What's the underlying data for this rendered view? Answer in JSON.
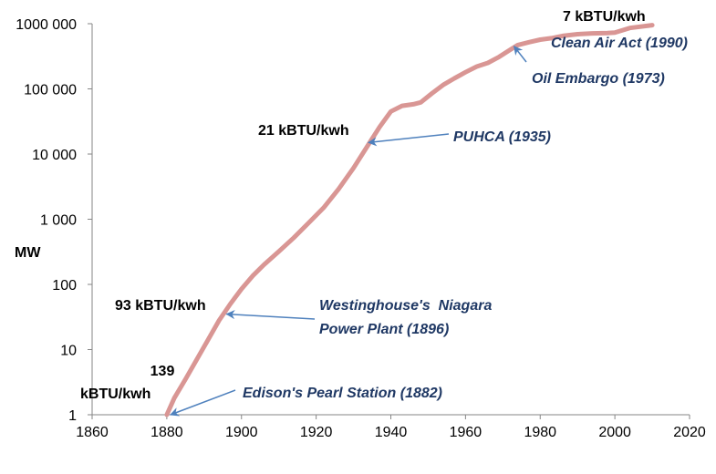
{
  "chart_data": {
    "type": "line",
    "title": "",
    "xlabel": "",
    "ylabel": "MW",
    "xlim": [
      1860,
      2020
    ],
    "ylim": [
      1,
      1000000
    ],
    "y_scale": "log",
    "grid": false,
    "legend": "none",
    "x_ticks": [
      "1860",
      "1880",
      "1900",
      "1920",
      "1940",
      "1960",
      "1980",
      "2000",
      "2020"
    ],
    "y_ticks": [
      "1",
      "10",
      "100",
      "1 000",
      "10 000",
      "100 000",
      "1000 000"
    ],
    "series": [
      {
        "color": "#d99694",
        "x": [
          1880,
          1882,
          1885,
          1888,
          1891,
          1894,
          1897,
          1900,
          1903,
          1906,
          1910,
          1914,
          1918,
          1922,
          1926,
          1930,
          1934,
          1937,
          1940,
          1943,
          1946,
          1948,
          1951,
          1954,
          1957,
          1960,
          1963,
          1966,
          1969,
          1972,
          1974,
          1977,
          1980,
          1983,
          1986,
          1990,
          1994,
          1998,
          2000,
          2004,
          2010
        ],
        "y": [
          1,
          1.8,
          3.5,
          7,
          14,
          28,
          50,
          85,
          135,
          200,
          320,
          520,
          880,
          1500,
          2900,
          6100,
          14000,
          26000,
          45000,
          55000,
          58000,
          62000,
          85000,
          115000,
          145000,
          180000,
          220000,
          250000,
          310000,
          400000,
          470000,
          520000,
          570000,
          600000,
          650000,
          690000,
          710000,
          720000,
          730000,
          860000,
          950000
        ]
      }
    ],
    "annotations": {
      "kbtu": [
        {
          "lines": [
            "139",
            "kBTU/kwh"
          ]
        },
        {
          "lines": [
            "93 kBTU/kwh"
          ]
        },
        {
          "lines": [
            "21 kBTU/kwh"
          ]
        },
        {
          "lines": [
            "7 kBTU/kwh"
          ]
        }
      ],
      "events": [
        {
          "lines": [
            "Edison's Pearl Station (1882)"
          ],
          "x": 1881,
          "y": 1
        },
        {
          "lines": [
            "Westinghouse's  Niagara",
            "Power Plant (1896)"
          ],
          "x": 1896,
          "y": 35
        },
        {
          "lines": [
            "PUHCA (1935)"
          ],
          "x": 1934,
          "y": 15000
        },
        {
          "lines": [
            "Oil Embargo (1973)"
          ],
          "x": 1973,
          "y": 450000
        },
        {
          "lines": [
            "Clean Air Act (1990)"
          ]
        }
      ]
    },
    "arrow_color": "#4f81bd"
  }
}
